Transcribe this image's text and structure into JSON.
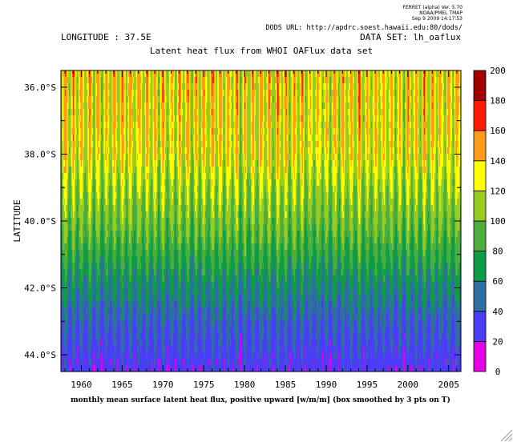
{
  "header": {
    "ferret_line1": "FERRET (alpha) Ver. 5.70",
    "ferret_line2": "NOAA/PMEL TMAP",
    "ferret_line3": "Sep  9 2009 14:17:53",
    "dods_url": "DODS URL: http://apdrc.soest.hawaii.edu:80/dods/",
    "longitude": "LONGITUDE : 37.5E",
    "dataset": "DATA SET: lh_oaflux"
  },
  "chart_data": {
    "type": "heatmap",
    "title": "Latent heat flux from WHOI OAFlux data set",
    "xlabel": "monthly mean surface latent heat flux, positive upward [w/m/m] (box smoothed by 3 pts on T)",
    "ylabel": "LATITUDE",
    "xlim": [
      1957.5,
      2006.5
    ],
    "ylim": [
      -44.5,
      -35.5
    ],
    "x_ticks": [
      "1960",
      "1965",
      "1970",
      "1975",
      "1980",
      "1985",
      "1990",
      "1995",
      "2000",
      "2005"
    ],
    "x_tick_values": [
      1960,
      1965,
      1970,
      1975,
      1980,
      1985,
      1990,
      1995,
      2000,
      2005
    ],
    "y_ticks": [
      "36.0°S",
      "38.0°S",
      "40.0°S",
      "42.0°S",
      "44.0°S"
    ],
    "y_tick_values": [
      -36,
      -38,
      -40,
      -42,
      -44
    ],
    "colorbar": {
      "levels": [
        0,
        20,
        40,
        60,
        80,
        100,
        120,
        140,
        160,
        180,
        200
      ],
      "labels": [
        "0",
        "20",
        "40",
        "60",
        "80",
        "100",
        "120",
        "140",
        "160",
        "180",
        "200"
      ],
      "colors": [
        "#e600e6",
        "#4b3cf5",
        "#2e6fa3",
        "#0f9c46",
        "#4cae3c",
        "#99cc23",
        "#ffff00",
        "#ff9b19",
        "#ff1a00",
        "#a00000"
      ]
    },
    "latitude_profile": {
      "latitudes": [
        -35.5,
        -36,
        -37,
        -38,
        -38.5,
        -39,
        -39.5,
        -40,
        -40.5,
        -41,
        -41.5,
        -42,
        -42.5,
        -43,
        -43.5,
        -44,
        -44.5
      ],
      "mean_flux": [
        132,
        130,
        128,
        125,
        118,
        110,
        104,
        98,
        90,
        80,
        70,
        60,
        52,
        44,
        38,
        32,
        28
      ]
    }
  }
}
